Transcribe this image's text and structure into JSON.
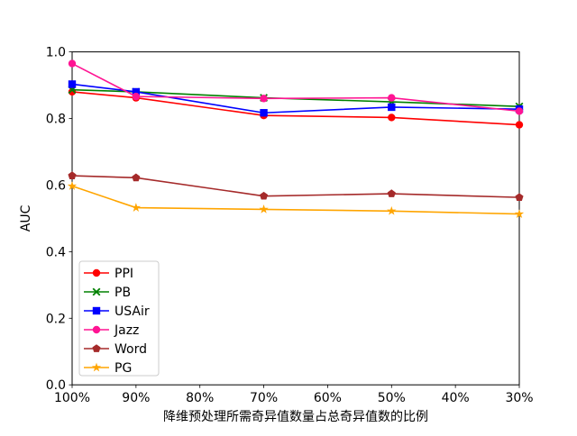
{
  "chart_data": {
    "type": "line",
    "title": "",
    "xlabel": "降维预处理所需奇异值数量占总奇异值数的比例",
    "ylabel": "AUC",
    "ylim": [
      0.0,
      1.0
    ],
    "y_ticks": [
      0.0,
      0.2,
      0.4,
      0.6,
      0.8,
      1.0
    ],
    "x_axis_reversed": true,
    "x_tick_values": [
      100,
      90,
      80,
      70,
      60,
      50,
      40,
      30
    ],
    "x_tick_labels": [
      "100%",
      "90%",
      "80%",
      "70%",
      "60%",
      "50%",
      "40%",
      "30%"
    ],
    "x": [
      100,
      90,
      70,
      50,
      30
    ],
    "grid": false,
    "legend_position": "lower left",
    "series": [
      {
        "name": "PPI",
        "color": "#ff0000",
        "marker": "circle",
        "values": [
          0.88,
          0.862,
          0.809,
          0.803,
          0.781
        ]
      },
      {
        "name": "PB",
        "color": "#008000",
        "marker": "x",
        "values": [
          0.886,
          0.88,
          0.862,
          0.85,
          0.836
        ]
      },
      {
        "name": "USAir",
        "color": "#0000ff",
        "marker": "square",
        "values": [
          0.903,
          0.88,
          0.817,
          0.834,
          0.828
        ]
      },
      {
        "name": "Jazz",
        "color": "#ff1493",
        "marker": "circle",
        "values": [
          0.965,
          0.866,
          0.86,
          0.862,
          0.822
        ]
      },
      {
        "name": "Word",
        "color": "#a52a2a",
        "marker": "pentagon",
        "values": [
          0.628,
          0.622,
          0.567,
          0.574,
          0.563
        ]
      },
      {
        "name": "PG",
        "color": "#ffa500",
        "marker": "star",
        "values": [
          0.597,
          0.532,
          0.527,
          0.522,
          0.513
        ]
      }
    ]
  }
}
